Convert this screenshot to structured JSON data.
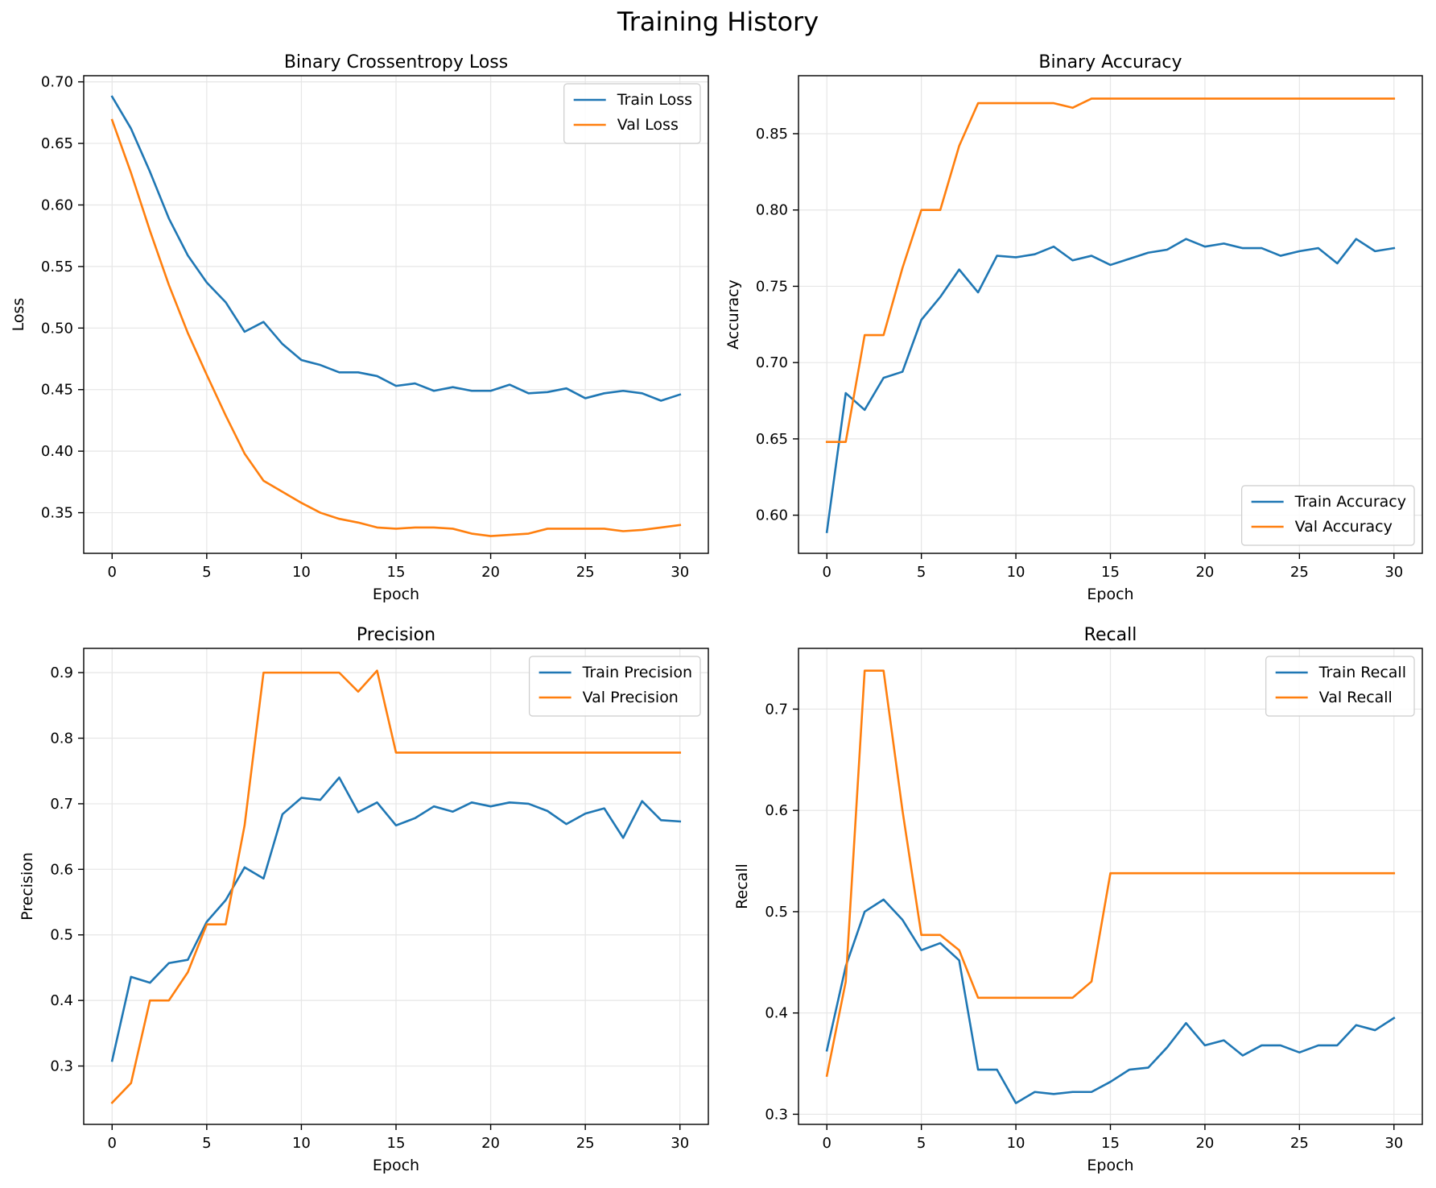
{
  "figure": {
    "title": "Training History"
  },
  "chart_data": [
    {
      "type": "line",
      "title": "Binary Crossentropy Loss",
      "xlabel": "Epoch",
      "ylabel": "Loss",
      "xlim": [
        -1.5,
        31.5
      ],
      "ylim": [
        0.317,
        0.705
      ],
      "xticks": [
        0,
        5,
        10,
        15,
        20,
        25,
        30
      ],
      "yticks": [
        0.35,
        0.4,
        0.45,
        0.5,
        0.55,
        0.6,
        0.65,
        0.7
      ],
      "tick_decimals": 2,
      "legend_position": "top-right",
      "grid": true,
      "x": [
        0,
        1,
        2,
        3,
        4,
        5,
        6,
        7,
        8,
        9,
        10,
        11,
        12,
        13,
        14,
        15,
        16,
        17,
        18,
        19,
        20,
        21,
        22,
        23,
        24,
        25,
        26,
        27,
        28,
        29,
        30
      ],
      "series": [
        {
          "name": "Train Loss",
          "color": "#1f77b4",
          "values": [
            0.688,
            0.662,
            0.627,
            0.589,
            0.559,
            0.537,
            0.521,
            0.497,
            0.505,
            0.487,
            0.474,
            0.47,
            0.464,
            0.464,
            0.461,
            0.453,
            0.455,
            0.449,
            0.452,
            0.449,
            0.449,
            0.454,
            0.447,
            0.448,
            0.451,
            0.443,
            0.447,
            0.449,
            0.447,
            0.441,
            0.446
          ]
        },
        {
          "name": "Val Loss",
          "color": "#ff7f0e",
          "values": [
            0.669,
            0.626,
            0.579,
            0.535,
            0.496,
            0.462,
            0.429,
            0.398,
            0.376,
            0.367,
            0.358,
            0.35,
            0.345,
            0.342,
            0.338,
            0.337,
            0.338,
            0.338,
            0.337,
            0.333,
            0.331,
            0.332,
            0.333,
            0.337,
            0.337,
            0.337,
            0.337,
            0.335,
            0.336,
            0.338,
            0.34
          ]
        }
      ]
    },
    {
      "type": "line",
      "title": "Binary Accuracy",
      "xlabel": "Epoch",
      "ylabel": "Accuracy",
      "xlim": [
        -1.5,
        31.5
      ],
      "ylim": [
        0.575,
        0.888
      ],
      "xticks": [
        0,
        5,
        10,
        15,
        20,
        25,
        30
      ],
      "yticks": [
        0.6,
        0.65,
        0.7,
        0.75,
        0.8,
        0.85
      ],
      "tick_decimals": 2,
      "legend_position": "lower-right",
      "grid": true,
      "x": [
        0,
        1,
        2,
        3,
        4,
        5,
        6,
        7,
        8,
        9,
        10,
        11,
        12,
        13,
        14,
        15,
        16,
        17,
        18,
        19,
        20,
        21,
        22,
        23,
        24,
        25,
        26,
        27,
        28,
        29,
        30
      ],
      "series": [
        {
          "name": "Train Accuracy",
          "color": "#1f77b4",
          "values": [
            0.589,
            0.68,
            0.669,
            0.69,
            0.694,
            0.728,
            0.743,
            0.761,
            0.746,
            0.77,
            0.769,
            0.771,
            0.776,
            0.767,
            0.77,
            0.764,
            0.768,
            0.772,
            0.774,
            0.781,
            0.776,
            0.778,
            0.775,
            0.775,
            0.77,
            0.773,
            0.775,
            0.765,
            0.781,
            0.773,
            0.775
          ]
        },
        {
          "name": "Val Accuracy",
          "color": "#ff7f0e",
          "values": [
            0.648,
            0.648,
            0.718,
            0.718,
            0.762,
            0.8,
            0.8,
            0.842,
            0.87,
            0.87,
            0.87,
            0.87,
            0.87,
            0.867,
            0.873,
            0.873,
            0.873,
            0.873,
            0.873,
            0.873,
            0.873,
            0.873,
            0.873,
            0.873,
            0.873,
            0.873,
            0.873,
            0.873,
            0.873,
            0.873,
            0.873
          ]
        }
      ]
    },
    {
      "type": "line",
      "title": "Precision",
      "xlabel": "Epoch",
      "ylabel": "Precision",
      "xlim": [
        -1.5,
        31.5
      ],
      "ylim": [
        0.211,
        0.937
      ],
      "xticks": [
        0,
        5,
        10,
        15,
        20,
        25,
        30
      ],
      "yticks": [
        0.3,
        0.4,
        0.5,
        0.6,
        0.7,
        0.8,
        0.9
      ],
      "tick_decimals": 1,
      "legend_position": "top-right",
      "grid": true,
      "x": [
        0,
        1,
        2,
        3,
        4,
        5,
        6,
        7,
        8,
        9,
        10,
        11,
        12,
        13,
        14,
        15,
        16,
        17,
        18,
        19,
        20,
        21,
        22,
        23,
        24,
        25,
        26,
        27,
        28,
        29,
        30
      ],
      "series": [
        {
          "name": "Train Precision",
          "color": "#1f77b4",
          "values": [
            0.308,
            0.436,
            0.427,
            0.457,
            0.462,
            0.52,
            0.553,
            0.603,
            0.586,
            0.684,
            0.709,
            0.706,
            0.74,
            0.687,
            0.702,
            0.667,
            0.678,
            0.696,
            0.688,
            0.702,
            0.696,
            0.702,
            0.7,
            0.689,
            0.669,
            0.685,
            0.693,
            0.648,
            0.704,
            0.675,
            0.673
          ]
        },
        {
          "name": "Val Precision",
          "color": "#ff7f0e",
          "values": [
            0.244,
            0.274,
            0.4,
            0.4,
            0.443,
            0.516,
            0.516,
            0.667,
            0.9,
            0.9,
            0.9,
            0.9,
            0.9,
            0.871,
            0.903,
            0.778,
            0.778,
            0.778,
            0.778,
            0.778,
            0.778,
            0.778,
            0.778,
            0.778,
            0.778,
            0.778,
            0.778,
            0.778,
            0.778,
            0.778,
            0.778
          ]
        }
      ]
    },
    {
      "type": "line",
      "title": "Recall",
      "xlabel": "Epoch",
      "ylabel": "Recall",
      "xlim": [
        -1.5,
        31.5
      ],
      "ylim": [
        0.29,
        0.76
      ],
      "xticks": [
        0,
        5,
        10,
        15,
        20,
        25,
        30
      ],
      "yticks": [
        0.3,
        0.4,
        0.5,
        0.6,
        0.7
      ],
      "tick_decimals": 1,
      "legend_position": "top-right",
      "grid": true,
      "x": [
        0,
        1,
        2,
        3,
        4,
        5,
        6,
        7,
        8,
        9,
        10,
        11,
        12,
        13,
        14,
        15,
        16,
        17,
        18,
        19,
        20,
        21,
        22,
        23,
        24,
        25,
        26,
        27,
        28,
        29,
        30
      ],
      "series": [
        {
          "name": "Train Recall",
          "color": "#1f77b4",
          "values": [
            0.363,
            0.446,
            0.5,
            0.512,
            0.492,
            0.462,
            0.469,
            0.452,
            0.344,
            0.344,
            0.311,
            0.322,
            0.32,
            0.322,
            0.322,
            0.332,
            0.344,
            0.346,
            0.366,
            0.39,
            0.368,
            0.373,
            0.358,
            0.368,
            0.368,
            0.361,
            0.368,
            0.368,
            0.388,
            0.383,
            0.395
          ]
        },
        {
          "name": "Val Recall",
          "color": "#ff7f0e",
          "values": [
            0.338,
            0.431,
            0.738,
            0.738,
            0.6,
            0.477,
            0.477,
            0.462,
            0.415,
            0.415,
            0.415,
            0.415,
            0.415,
            0.415,
            0.431,
            0.538,
            0.538,
            0.538,
            0.538,
            0.538,
            0.538,
            0.538,
            0.538,
            0.538,
            0.538,
            0.538,
            0.538,
            0.538,
            0.538,
            0.538,
            0.538
          ]
        }
      ]
    }
  ]
}
